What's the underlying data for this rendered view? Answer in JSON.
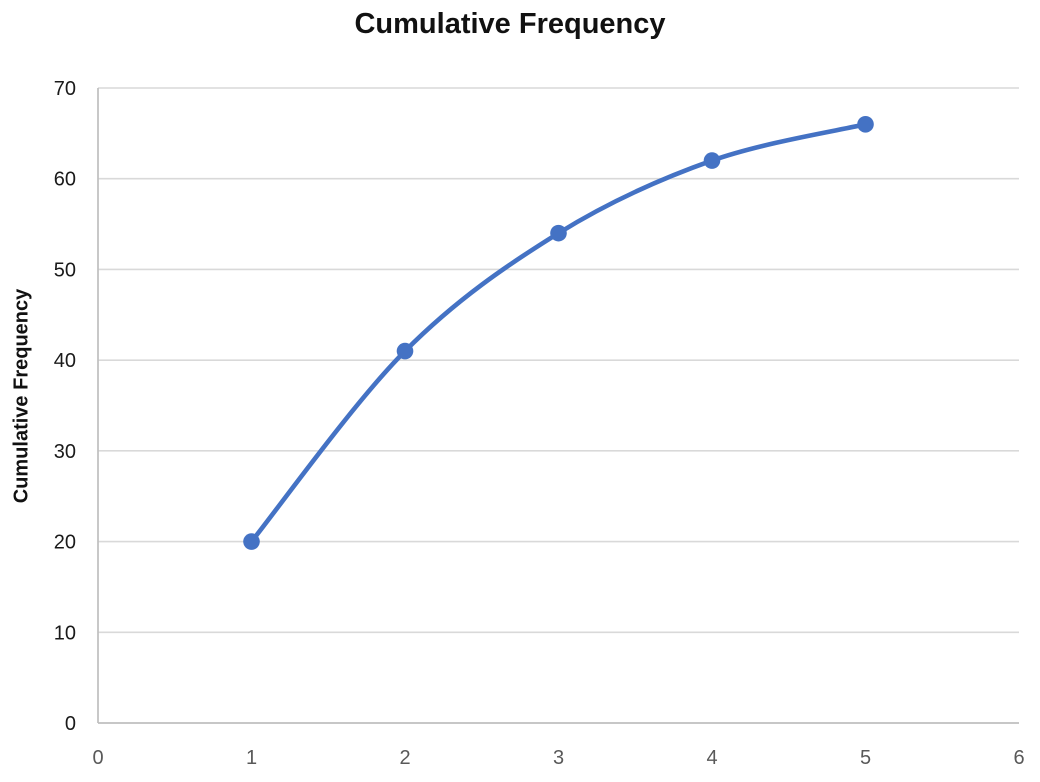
{
  "chart_data": {
    "type": "line",
    "title": "Cumulative Frequency",
    "xlabel": "",
    "ylabel": "Cumulative Frequency",
    "x": [
      1,
      2,
      3,
      4,
      5
    ],
    "y": [
      20,
      41,
      54,
      62,
      66
    ],
    "xlim": [
      0,
      6
    ],
    "ylim": [
      0,
      70
    ],
    "xticks": [
      0,
      1,
      2,
      3,
      4,
      5,
      6
    ],
    "yticks": [
      0,
      10,
      20,
      30,
      40,
      50,
      60,
      70
    ],
    "grid": "horizontal",
    "legend": "none",
    "smooth": true,
    "marker": "circle",
    "colors": {
      "line": "#4472C4",
      "marker": "#4472C4",
      "gridline": "#D9D9D9",
      "axis_line": "#BFBFBF",
      "x_tick_label": "#595959",
      "y_tick_label": "#1a1a1a",
      "title": "#111111"
    }
  }
}
